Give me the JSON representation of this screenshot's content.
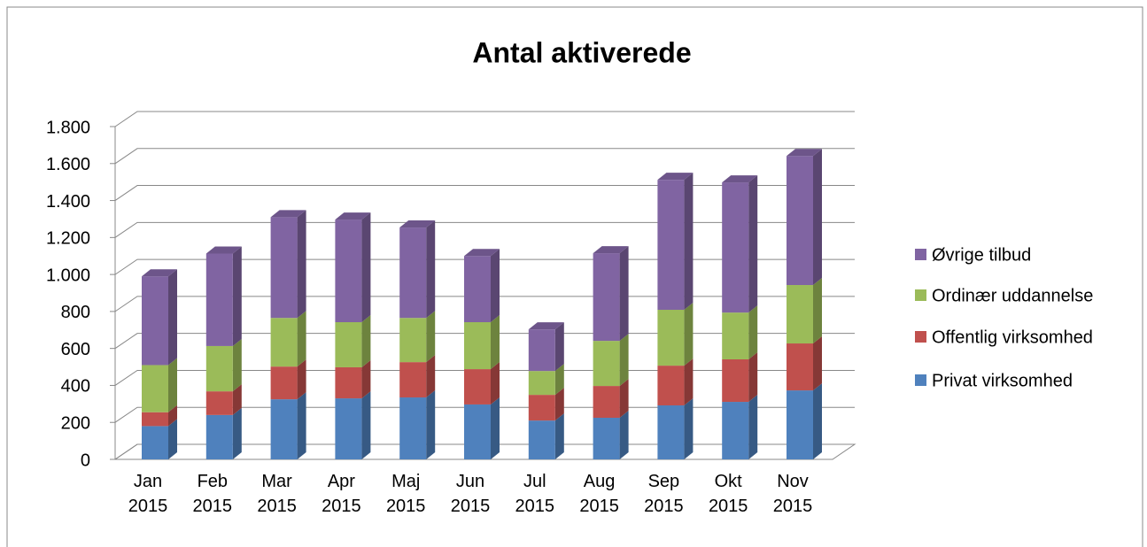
{
  "chart_data": {
    "type": "bar3d_stacked",
    "title": "Antal aktiverede",
    "categories": [
      "Jan 2015",
      "Feb 2015",
      "Mar 2015",
      "Apr 2015",
      "Maj 2015",
      "Jun 2015",
      "Jul 2015",
      "Aug 2015",
      "Sep 2015",
      "Okt 2015",
      "Nov 2015"
    ],
    "series": [
      {
        "name": "Privat virksomhed",
        "color": "#4f81bd",
        "values": [
          180,
          240,
          325,
          330,
          335,
          297,
          210,
          225,
          292,
          311,
          373
        ]
      },
      {
        "name": "Offentlig virksomhed",
        "color": "#c0504d",
        "values": [
          75,
          128,
          177,
          168,
          191,
          191,
          139,
          172,
          215,
          230,
          254
        ]
      },
      {
        "name": "Ordinær uddannelse",
        "color": "#9bbb59",
        "values": [
          255,
          245,
          263,
          244,
          239,
          254,
          129,
          244,
          302,
          253,
          316
        ]
      },
      {
        "name": "Øvrige tilbud",
        "color": "#8064a2",
        "values": [
          480,
          500,
          545,
          555,
          489,
          358,
          225,
          474,
          703,
          704,
          698
        ]
      }
    ],
    "ylim": [
      0,
      1800
    ],
    "yticks": [
      0,
      200,
      400,
      600,
      800,
      {
        "value": 1000,
        "label": "1.000"
      },
      {
        "value": 1200,
        "label": "1.200"
      },
      {
        "value": 1400,
        "label": "1.400"
      },
      {
        "value": 1600,
        "label": "1.600"
      },
      {
        "value": 1800,
        "label": "1.800"
      }
    ],
    "grid": true,
    "legend": "right"
  }
}
